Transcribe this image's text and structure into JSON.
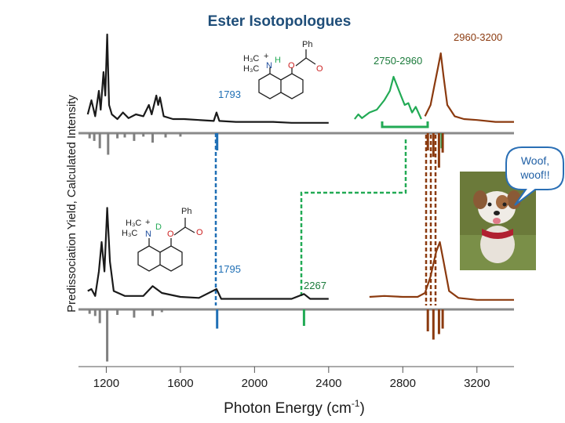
{
  "chart_data": {
    "type": "line",
    "title": "Ester Isotopologues",
    "xlabel": "Photon Energy (cm",
    "xlabel_sup": "-1",
    "xlabel_close": ")",
    "ylabel": "Predissociation Yield, Calculated Intensity",
    "xlim": [
      1050,
      3400
    ],
    "x_ticks": [
      1200,
      1600,
      2000,
      2400,
      2800,
      3200
    ],
    "colors": {
      "experiment": "#1a1a1a",
      "calc_gray": "#808080",
      "fingerprint_blue": "#1f6fb5",
      "cd_green": "#22aa55",
      "ch_brown": "#8b3a0f"
    },
    "series": [
      {
        "panel": "top",
        "kind": "experiment",
        "points": [
          [
            1100,
            0.1
          ],
          [
            1120,
            0.25
          ],
          [
            1140,
            0.08
          ],
          [
            1160,
            0.35
          ],
          [
            1170,
            0.15
          ],
          [
            1185,
            0.55
          ],
          [
            1195,
            0.3
          ],
          [
            1205,
            0.95
          ],
          [
            1215,
            0.2
          ],
          [
            1230,
            0.1
          ],
          [
            1260,
            0.05
          ],
          [
            1290,
            0.12
          ],
          [
            1320,
            0.06
          ],
          [
            1360,
            0.1
          ],
          [
            1400,
            0.08
          ],
          [
            1430,
            0.2
          ],
          [
            1445,
            0.1
          ],
          [
            1470,
            0.3
          ],
          [
            1480,
            0.2
          ],
          [
            1490,
            0.28
          ],
          [
            1510,
            0.08
          ],
          [
            1560,
            0.05
          ],
          [
            1620,
            0.05
          ],
          [
            1700,
            0.04
          ],
          [
            1780,
            0.03
          ],
          [
            1795,
            0.12
          ],
          [
            1810,
            0.03
          ],
          [
            1900,
            0.02
          ],
          [
            2000,
            0.02
          ],
          [
            2100,
            0.02
          ],
          [
            2200,
            0.01
          ],
          [
            2300,
            0.01
          ],
          [
            2400,
            0.01
          ]
        ]
      },
      {
        "panel": "top",
        "kind": "experiment_cd",
        "points": [
          [
            2540,
            0.05
          ],
          [
            2560,
            0.1
          ],
          [
            2580,
            0.06
          ],
          [
            2620,
            0.12
          ],
          [
            2660,
            0.15
          ],
          [
            2700,
            0.25
          ],
          [
            2730,
            0.35
          ],
          [
            2750,
            0.5
          ],
          [
            2770,
            0.4
          ],
          [
            2790,
            0.3
          ],
          [
            2810,
            0.2
          ],
          [
            2830,
            0.22
          ],
          [
            2850,
            0.12
          ],
          [
            2870,
            0.18
          ],
          [
            2900,
            0.05
          ]
        ]
      },
      {
        "panel": "top",
        "kind": "experiment_ch",
        "points": [
          [
            2920,
            0.08
          ],
          [
            2950,
            0.2
          ],
          [
            2970,
            0.4
          ],
          [
            2990,
            0.6
          ],
          [
            3005,
            0.75
          ],
          [
            3020,
            0.5
          ],
          [
            3040,
            0.2
          ],
          [
            3080,
            0.08
          ],
          [
            3130,
            0.05
          ],
          [
            3200,
            0.04
          ],
          [
            3300,
            0.02
          ],
          [
            3400,
            0.02
          ]
        ]
      },
      {
        "panel": "bottom",
        "kind": "experiment",
        "points": [
          [
            1100,
            0.1
          ],
          [
            1120,
            0.12
          ],
          [
            1140,
            0.05
          ],
          [
            1160,
            0.3
          ],
          [
            1175,
            0.6
          ],
          [
            1190,
            0.3
          ],
          [
            1205,
            0.95
          ],
          [
            1220,
            0.4
          ],
          [
            1240,
            0.1
          ],
          [
            1300,
            0.05
          ],
          [
            1400,
            0.05
          ],
          [
            1450,
            0.15
          ],
          [
            1500,
            0.08
          ],
          [
            1600,
            0.04
          ],
          [
            1700,
            0.03
          ],
          [
            1795,
            0.12
          ],
          [
            1820,
            0.02
          ],
          [
            1900,
            0.02
          ],
          [
            2000,
            0.02
          ],
          [
            2100,
            0.02
          ],
          [
            2200,
            0.02
          ],
          [
            2267,
            0.07
          ],
          [
            2300,
            0.02
          ],
          [
            2400,
            0.02
          ]
        ]
      },
      {
        "panel": "bottom",
        "kind": "experiment_ch",
        "points": [
          [
            2620,
            0.04
          ],
          [
            2700,
            0.05
          ],
          [
            2800,
            0.04
          ],
          [
            2880,
            0.04
          ],
          [
            2920,
            0.08
          ],
          [
            2950,
            0.25
          ],
          [
            2980,
            0.5
          ],
          [
            3000,
            0.6
          ],
          [
            3020,
            0.4
          ],
          [
            3050,
            0.1
          ],
          [
            3100,
            0.03
          ],
          [
            3200,
            0.01
          ],
          [
            3300,
            0.01
          ],
          [
            3400,
            0.01
          ]
        ]
      },
      {
        "panel": "top",
        "kind": "calc_gray",
        "sticks": [
          [
            1110,
            0.12
          ],
          [
            1135,
            0.18
          ],
          [
            1165,
            0.35
          ],
          [
            1210,
            0.5
          ],
          [
            1260,
            0.12
          ],
          [
            1300,
            0.1
          ],
          [
            1350,
            0.18
          ],
          [
            1400,
            0.08
          ],
          [
            1450,
            0.22
          ],
          [
            1520,
            0.1
          ],
          [
            1600,
            0.08
          ]
        ]
      },
      {
        "panel": "top",
        "kind": "calc_blue",
        "sticks": [
          [
            1798,
            0.4
          ]
        ]
      },
      {
        "panel": "top",
        "kind": "calc_green",
        "sticks": [
          [
            3010,
            0.35
          ]
        ]
      },
      {
        "panel": "top",
        "kind": "calc_brown",
        "sticks": [
          [
            2935,
            0.4
          ],
          [
            2965,
            0.55
          ],
          [
            2995,
            0.8
          ],
          [
            3015,
            0.45
          ]
        ]
      },
      {
        "panel": "bottom",
        "kind": "calc_gray",
        "sticks": [
          [
            1110,
            0.08
          ],
          [
            1140,
            0.12
          ],
          [
            1165,
            0.25
          ],
          [
            1205,
            0.95
          ],
          [
            1260,
            0.1
          ],
          [
            1350,
            0.15
          ],
          [
            1450,
            0.12
          ],
          [
            1500,
            0.05
          ]
        ]
      },
      {
        "panel": "bottom",
        "kind": "calc_blue",
        "sticks": [
          [
            1798,
            0.35
          ]
        ]
      },
      {
        "panel": "bottom",
        "kind": "calc_green",
        "sticks": [
          [
            2267,
            0.3
          ]
        ]
      },
      {
        "panel": "bottom",
        "kind": "calc_brown",
        "sticks": [
          [
            2935,
            0.4
          ],
          [
            2965,
            0.55
          ],
          [
            2995,
            0.45
          ],
          [
            3015,
            0.35
          ]
        ]
      }
    ],
    "annotations": [
      {
        "text": "2960-3200",
        "color": "ch_brown"
      },
      {
        "text": "2750-2960",
        "color": "cd_green"
      },
      {
        "text": "1793",
        "color": "fingerprint_blue"
      },
      {
        "text": "1795",
        "color": "fingerprint_blue"
      },
      {
        "text": "2267",
        "color": "cd_green"
      }
    ]
  },
  "molecule_top": {
    "me1": "H₃C",
    "me2": "H₃C",
    "plus": "+",
    "n": "N",
    "h": "H",
    "o1": "O",
    "o2": "O",
    "ph": "Ph"
  },
  "molecule_bottom": {
    "me1": "H₃C",
    "me2": "H₃C",
    "plus": "+",
    "n": "N",
    "d": "D",
    "o1": "O",
    "o2": "O",
    "ph": "Ph"
  },
  "speech_bubble": {
    "line1": "Woof,",
    "line2": "woof!!"
  },
  "dog_photo": {
    "icon": "dog-icon"
  }
}
